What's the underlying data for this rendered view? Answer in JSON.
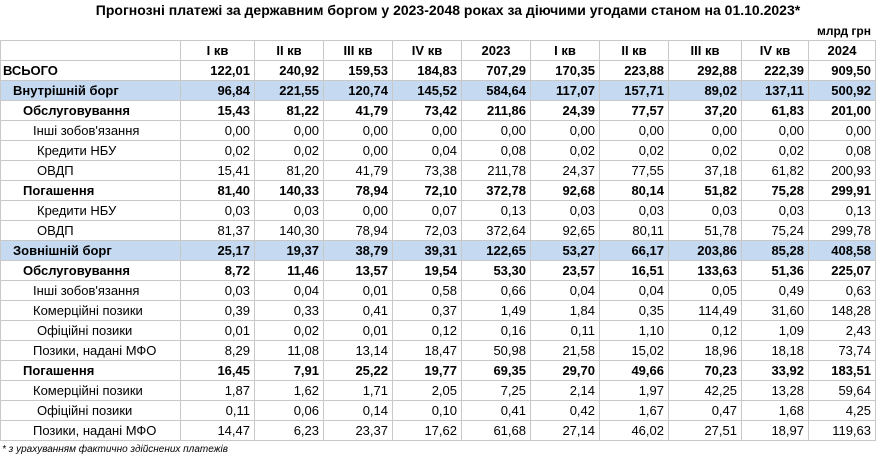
{
  "title": "Прогнозні платежі за державним боргом у 2023-2048 роках за діючими угодами станом на 01.10.2023*",
  "unit": "млрд грн",
  "columns": [
    "I кв",
    "II кв",
    "III кв",
    "IV кв",
    "2023",
    "I кв",
    "II кв",
    "III кв",
    "IV кв",
    "2024"
  ],
  "rows": [
    {
      "label": "ВСЬОГО",
      "values": [
        "122,01",
        "240,92",
        "159,53",
        "184,83",
        "707,29",
        "170,35",
        "223,88",
        "292,88",
        "222,39",
        "909,50"
      ]
    },
    {
      "label": "Внутрішній борг",
      "values": [
        "96,84",
        "221,55",
        "120,74",
        "145,52",
        "584,64",
        "117,07",
        "157,71",
        "89,02",
        "137,11",
        "500,92"
      ]
    },
    {
      "label": "Обслуговування",
      "values": [
        "15,43",
        "81,22",
        "41,79",
        "73,42",
        "211,86",
        "24,39",
        "77,57",
        "37,20",
        "61,83",
        "201,00"
      ]
    },
    {
      "label": "Інші зобов'язання",
      "values": [
        "0,00",
        "0,00",
        "0,00",
        "0,00",
        "0,00",
        "0,00",
        "0,00",
        "0,00",
        "0,00",
        "0,00"
      ]
    },
    {
      "label": "Кредити НБУ",
      "values": [
        "0,02",
        "0,02",
        "0,00",
        "0,04",
        "0,08",
        "0,02",
        "0,02",
        "0,02",
        "0,02",
        "0,08"
      ]
    },
    {
      "label": "ОВДП",
      "values": [
        "15,41",
        "81,20",
        "41,79",
        "73,38",
        "211,78",
        "24,37",
        "77,55",
        "37,18",
        "61,82",
        "200,93"
      ]
    },
    {
      "label": "Погашення",
      "values": [
        "81,40",
        "140,33",
        "78,94",
        "72,10",
        "372,78",
        "92,68",
        "80,14",
        "51,82",
        "75,28",
        "299,91"
      ]
    },
    {
      "label": "Кредити НБУ",
      "values": [
        "0,03",
        "0,03",
        "0,00",
        "0,07",
        "0,13",
        "0,03",
        "0,03",
        "0,03",
        "0,03",
        "0,13"
      ]
    },
    {
      "label": "ОВДП",
      "values": [
        "81,37",
        "140,30",
        "78,94",
        "72,03",
        "372,64",
        "92,65",
        "80,11",
        "51,78",
        "75,24",
        "299,78"
      ]
    },
    {
      "label": "Зовнішній борг",
      "values": [
        "25,17",
        "19,37",
        "38,79",
        "39,31",
        "122,65",
        "53,27",
        "66,17",
        "203,86",
        "85,28",
        "408,58"
      ]
    },
    {
      "label": "Обслуговування",
      "values": [
        "8,72",
        "11,46",
        "13,57",
        "19,54",
        "53,30",
        "23,57",
        "16,51",
        "133,63",
        "51,36",
        "225,07"
      ]
    },
    {
      "label": "Інші зобов'язання",
      "values": [
        "0,03",
        "0,04",
        "0,01",
        "0,58",
        "0,66",
        "0,04",
        "0,04",
        "0,05",
        "0,49",
        "0,63"
      ]
    },
    {
      "label": "Комерційні позики",
      "values": [
        "0,39",
        "0,33",
        "0,41",
        "0,37",
        "1,49",
        "1,84",
        "0,35",
        "114,49",
        "31,60",
        "148,28"
      ]
    },
    {
      "label": "Офіційні позики",
      "values": [
        "0,01",
        "0,02",
        "0,01",
        "0,12",
        "0,16",
        "0,11",
        "1,10",
        "0,12",
        "1,09",
        "2,43"
      ]
    },
    {
      "label": "Позики, надані МФО",
      "values": [
        "8,29",
        "11,08",
        "13,14",
        "18,47",
        "50,98",
        "21,58",
        "15,02",
        "18,96",
        "18,18",
        "73,74"
      ]
    },
    {
      "label": "Погашення",
      "values": [
        "16,45",
        "7,91",
        "25,22",
        "19,77",
        "69,35",
        "29,70",
        "49,66",
        "70,23",
        "33,92",
        "183,51"
      ]
    },
    {
      "label": "Комерційні позики",
      "values": [
        "1,87",
        "1,62",
        "1,71",
        "2,05",
        "7,25",
        "2,14",
        "1,97",
        "42,25",
        "13,28",
        "59,64"
      ]
    },
    {
      "label": "Офіційні позики",
      "values": [
        "0,11",
        "0,06",
        "0,14",
        "0,10",
        "0,41",
        "0,42",
        "1,67",
        "0,47",
        "1,68",
        "4,25"
      ]
    },
    {
      "label": "Позики, надані МФО",
      "values": [
        "14,47",
        "6,23",
        "23,37",
        "17,62",
        "61,68",
        "27,14",
        "46,02",
        "27,51",
        "18,97",
        "119,63"
      ]
    }
  ],
  "footnote": "* з урахуванням фактично здійснених платежів"
}
